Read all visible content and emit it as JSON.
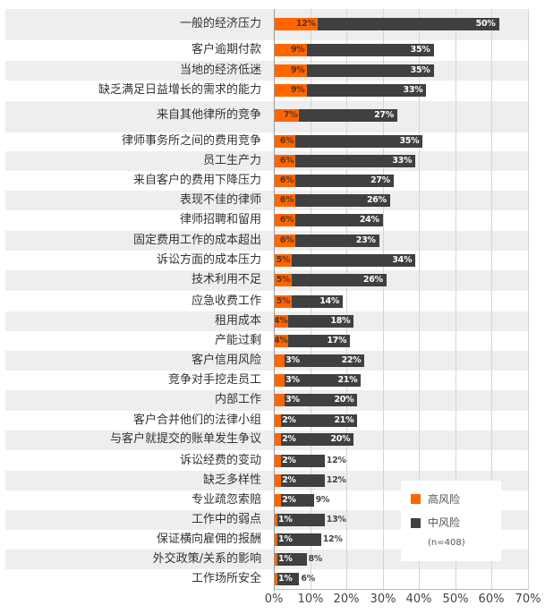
{
  "chart_data": {
    "type": "bar",
    "orientation": "horizontal",
    "stacked": true,
    "title": "",
    "xlabel": "",
    "ylabel": "",
    "xlim": [
      0,
      70
    ],
    "x_ticks": [
      "0%",
      "10%",
      "20%",
      "30%",
      "40%",
      "50%",
      "60%",
      "70%"
    ],
    "grid": true,
    "legend_position": "lower-right-inside",
    "colors": {
      "high": "#ff6600",
      "mid": "#404040",
      "stripe": "#eeeeee"
    },
    "categories": [
      "一般的经济压力",
      "客户逾期付款",
      "当地的经济低迷",
      "缺乏满足日益增长的需求的能力",
      "来自其他律所的竞争",
      "律师事务所之间的费用竞争",
      "员工生产力",
      "来自客户的费用下降压力",
      "表现不佳的律师",
      "律师招聘和留用",
      "固定费用工作的成本超出",
      "诉讼方面的成本压力",
      "技术利用不足",
      "应急收费工作",
      "租用成本",
      "产能过剩",
      "客户信用风险",
      "竞争对手挖走员工",
      "内部工作",
      "客户合并他们的法律小组",
      "与客户就提交的账单发生争议",
      "诉讼经费的变动",
      "缺乏多样性",
      "专业疏忽索赔",
      "工作中的弱点",
      "保证横向雇佣的报酬",
      "外交政策/关系的影响",
      "工作场所安全"
    ],
    "series": [
      {
        "name": "高风险",
        "values": [
          12,
          9,
          9,
          9,
          7,
          6,
          6,
          6,
          6,
          6,
          6,
          5,
          5,
          5,
          4,
          4,
          3,
          3,
          3,
          2,
          2,
          2,
          2,
          2,
          1,
          1,
          1,
          1
        ]
      },
      {
        "name": "中风险",
        "values": [
          50,
          35,
          35,
          33,
          27,
          35,
          33,
          27,
          26,
          24,
          23,
          34,
          26,
          14,
          18,
          17,
          22,
          21,
          20,
          21,
          20,
          12,
          12,
          9,
          13,
          12,
          8,
          6
        ]
      }
    ],
    "legend": {
      "items": [
        {
          "label": "高风险",
          "color": "#ff6600"
        },
        {
          "label": "中风险",
          "color": "#404040"
        }
      ],
      "note": "(n=408)"
    }
  }
}
